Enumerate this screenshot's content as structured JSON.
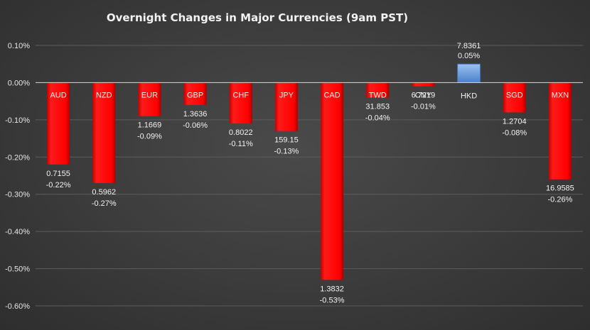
{
  "chart_data": {
    "type": "bar",
    "title": "Overnight Changes in Major Currencies (9am PST)",
    "xlabel": "",
    "ylabel": "",
    "ylim": [
      -0.6,
      0.1
    ],
    "yticks": [
      0.1,
      0.0,
      -0.1,
      -0.2,
      -0.3,
      -0.4,
      -0.5,
      -0.6
    ],
    "ytick_labels": [
      "0.10%",
      "0.00%",
      "-0.10%",
      "-0.20%",
      "-0.30%",
      "-0.40%",
      "-0.50%",
      "-0.60%"
    ],
    "grid": true,
    "legend": "none",
    "categories": [
      "AUD",
      "NZD",
      "EUR",
      "GBP",
      "CHF",
      "JPY",
      "CAD",
      "TWD",
      "CNY",
      "HKD",
      "SGD",
      "MXN"
    ],
    "values": [
      -0.22,
      -0.27,
      -0.09,
      -0.06,
      -0.11,
      -0.13,
      -0.53,
      -0.04,
      -0.01,
      0.05,
      -0.08,
      -0.26
    ],
    "rates": [
      "0.7155",
      "0.5962",
      "1.1669",
      "1.3636",
      "0.8022",
      "159.15",
      "1.3832",
      "31.853",
      "6.7219",
      "7.8361",
      "1.2704",
      "16.9585"
    ],
    "pct_labels": [
      "-0.22%",
      "-0.27%",
      "-0.09%",
      "-0.06%",
      "-0.11%",
      "-0.13%",
      "-0.53%",
      "-0.04%",
      "-0.01%",
      "0.05%",
      "-0.08%",
      "-0.26%"
    ],
    "colors": {
      "negative": "#ff0000",
      "negative_shade": "#c00000",
      "positive": "#5b8fd6",
      "positive_light": "#8fb6ea",
      "text": "#f2f2f2",
      "grid": "#5c5c5c"
    }
  }
}
